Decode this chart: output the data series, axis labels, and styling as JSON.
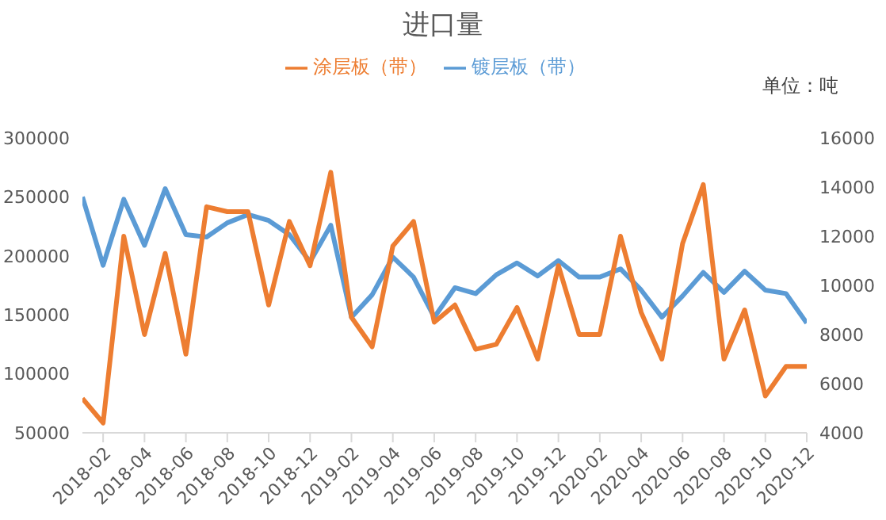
{
  "chart_data": {
    "type": "line",
    "title": "进口量",
    "annotations": [
      "单位：吨"
    ],
    "x": [
      "2018-01",
      "2018-02",
      "2018-03",
      "2018-04",
      "2018-05",
      "2018-06",
      "2018-07",
      "2018-08",
      "2018-09",
      "2018-10",
      "2018-11",
      "2018-12",
      "2019-01",
      "2019-02",
      "2019-03",
      "2019-04",
      "2019-05",
      "2019-06",
      "2019-07",
      "2019-08",
      "2019-09",
      "2019-10",
      "2019-11",
      "2019-12",
      "2020-01",
      "2020-02",
      "2020-03",
      "2020-04",
      "2020-05",
      "2020-06",
      "2020-07",
      "2020-08",
      "2020-09",
      "2020-10",
      "2020-11",
      "2020-12"
    ],
    "series": [
      {
        "name": "镀层板（带）",
        "color": "#5b9bd5",
        "values": [
          250000,
          192000,
          248000,
          209000,
          257000,
          218000,
          216000,
          228000,
          235000,
          230000,
          218000,
          195000,
          226000,
          148000,
          167000,
          199000,
          182000,
          148000,
          173000,
          168000,
          184000,
          194000,
          183000,
          196000,
          182000,
          182000,
          189000,
          171000,
          148000,
          166000,
          186000,
          169000,
          187000,
          171000,
          168000,
          143000
        ]
      },
      {
        "name": "涂层板（带）",
        "color": "#ed7d31",
        "axis": "y2",
        "values": [
          5400,
          4400,
          12000,
          8000,
          11300,
          7200,
          13200,
          13000,
          13000,
          9200,
          12600,
          10800,
          14600,
          8700,
          7500,
          11600,
          12600,
          8500,
          9200,
          7400,
          7600,
          9100,
          7000,
          10800,
          8000,
          8000,
          12000,
          8900,
          7000,
          11700,
          14100,
          7000,
          9000,
          5500,
          6700,
          6700
        ]
      }
    ],
    "xlim": [
      "2018-01",
      "2020-12"
    ],
    "xticks": [
      "2018-02",
      "2018-04",
      "2018-06",
      "2018-08",
      "2018-10",
      "2018-12",
      "2019-02",
      "2019-04",
      "2019-06",
      "2019-08",
      "2019-10",
      "2019-12",
      "2020-02",
      "2020-04",
      "2020-06",
      "2020-08",
      "2020-10",
      "2020-12"
    ],
    "ylim": [
      50000,
      300000
    ],
    "yticks": [
      50000,
      100000,
      150000,
      200000,
      250000,
      300000
    ],
    "y2lim": [
      4000,
      16000
    ],
    "y2ticks": [
      4000,
      6000,
      8000,
      10000,
      12000,
      14000,
      16000
    ],
    "legend": "top",
    "grid": false,
    "marker": "none",
    "line_style": "solid"
  }
}
